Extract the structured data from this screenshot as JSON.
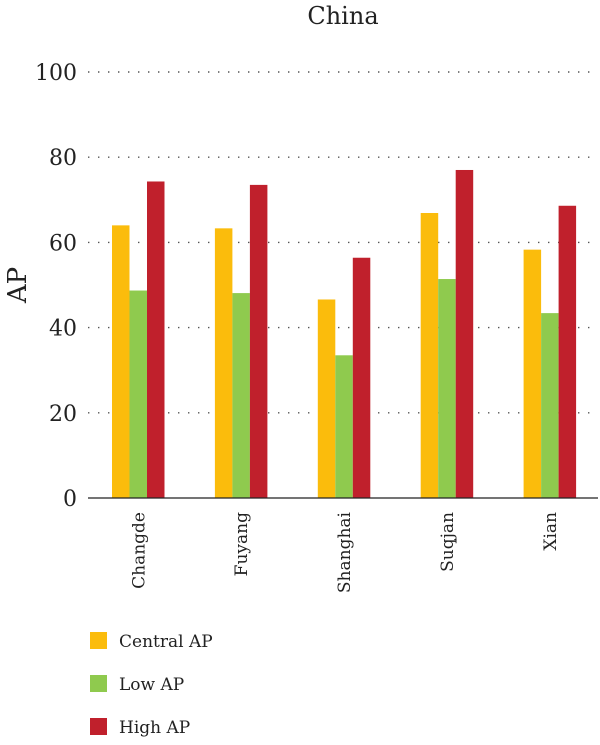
{
  "chart_data": {
    "type": "bar",
    "title": "China",
    "xlabel": "",
    "ylabel": "AP",
    "ylim": [
      0,
      100
    ],
    "yticks": [
      0,
      20,
      40,
      60,
      80,
      100
    ],
    "grid": true,
    "legend_position": "bottom-left",
    "categories": [
      "Changde",
      "Fuyang",
      "Shanghai",
      "Suqjan",
      "Xian"
    ],
    "series": [
      {
        "name": "Central AP",
        "color": "#fbbc0c",
        "values": [
          64.0,
          63.3,
          46.6,
          66.9,
          58.3
        ]
      },
      {
        "name": "Low AP",
        "color": "#8fca4e",
        "values": [
          48.7,
          48.1,
          33.5,
          51.4,
          43.4
        ]
      },
      {
        "name": "High AP",
        "color": "#c0202c",
        "values": [
          74.3,
          73.5,
          56.4,
          77.0,
          68.6
        ]
      }
    ]
  }
}
